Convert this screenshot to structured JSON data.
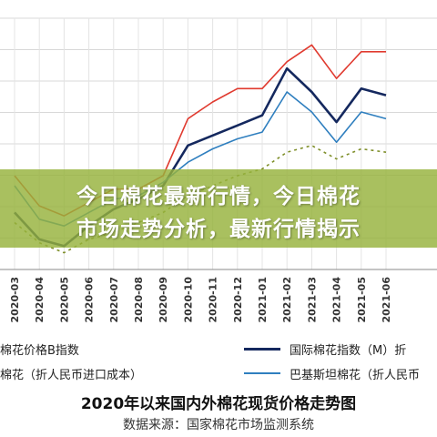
{
  "banner": {
    "line1": "今日棉花最新行情，今日棉花",
    "line2": "市场走势分析，最新行情揭示"
  },
  "chart_data": {
    "type": "line",
    "x": [
      "2020-03",
      "2020-04",
      "2020-05",
      "2020-06",
      "2020-07",
      "2020-08",
      "2020-09",
      "2020-10",
      "2020-11",
      "2020-12",
      "2021-01",
      "2021-02",
      "2021-03",
      "2021-04",
      "2021-05",
      "2021-06"
    ],
    "series": [
      {
        "name": "国内棉花价格B指数",
        "color": "#e03a2f",
        "style": "solid",
        "values": [
          12300,
          11400,
          11100,
          11500,
          11900,
          11900,
          12300,
          14000,
          14500,
          14900,
          14900,
          15700,
          16200,
          15200,
          16000,
          16000
        ]
      },
      {
        "name": "国际棉花指数（M）折",
        "color": "#14285e",
        "style": "solid",
        "values": [
          11200,
          10400,
          10200,
          10800,
          11300,
          11600,
          12000,
          13200,
          13500,
          13800,
          14100,
          15500,
          14800,
          13900,
          14900,
          14700
        ]
      },
      {
        "name": "棉花（折人民币进口成本）",
        "color": "#7f8f2a",
        "style": "dashed",
        "values": [
          10900,
          10300,
          10000,
          10400,
          10600,
          10900,
          11200,
          11700,
          12000,
          12300,
          12500,
          13000,
          13200,
          12800,
          13100,
          13000
        ]
      },
      {
        "name": "巴基斯坦棉花（折人民币",
        "color": "#2f7fbf",
        "style": "solid",
        "values": [
          12000,
          11000,
          10800,
          11200,
          11600,
          11700,
          12100,
          12700,
          13100,
          13400,
          13600,
          14800,
          14200,
          13300,
          14200,
          14000
        ]
      }
    ],
    "title": "2020年以来国内外棉花现货价格走势图",
    "source": "数据来源：国家棉花市场监测系统",
    "grid": true
  },
  "legend": {
    "left_top": "棉花价格B指数",
    "left_bottom": "棉花（折人民币进口成本）",
    "right_top": "国际棉花指数（M）折",
    "right_bottom": "巴基斯坦棉花（折人民币"
  }
}
